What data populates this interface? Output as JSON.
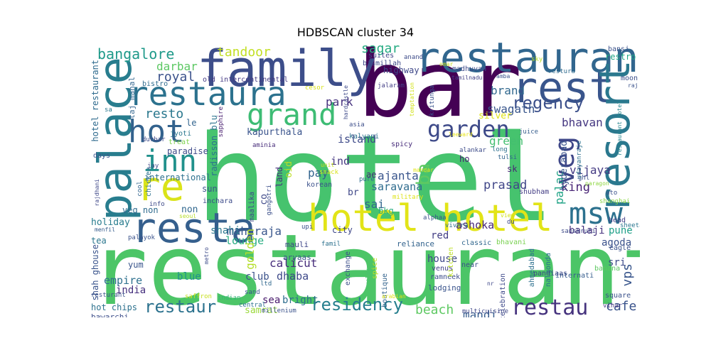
{
  "title": "HDBSCAN cluster 34",
  "words": [
    {
      "text": "hotel",
      "color": "#46c36e"
    },
    {
      "text": "restaurant",
      "color": "#4cc567"
    },
    {
      "text": "bar",
      "color": "#440154"
    },
    {
      "text": "family",
      "color": "#3d4e8a"
    },
    {
      "text": "restauran",
      "color": "#31668e"
    },
    {
      "text": "rest",
      "color": "#39558c"
    },
    {
      "text": "restaura",
      "color": "#2c728e"
    },
    {
      "text": "grand",
      "color": "#3dbc74"
    },
    {
      "text": "palace",
      "color": "#287d8e"
    },
    {
      "text": "resort",
      "color": "#2a788e"
    },
    {
      "text": "hot",
      "color": "#33628d"
    },
    {
      "text": "inn",
      "color": "#21918c"
    },
    {
      "text": "re",
      "color": "#dae319"
    },
    {
      "text": "hotel hotel",
      "color": "#e2e418"
    },
    {
      "text": "resta",
      "color": "#355f8d"
    },
    {
      "text": "msw",
      "color": "#2c718e"
    },
    {
      "text": "veg",
      "color": "#3f4788"
    },
    {
      "text": "garden",
      "color": "#3e4a89"
    },
    {
      "text": "regency",
      "color": "#3c508b"
    },
    {
      "text": "residency",
      "color": "#277f8e"
    },
    {
      "text": "restau",
      "color": "#46337e"
    },
    {
      "text": "restaur",
      "color": "#2c728e"
    },
    {
      "text": "bangalore",
      "color": "#1f9a8a"
    },
    {
      "text": "tandoor",
      "color": "#c2df23"
    },
    {
      "text": "sagar",
      "color": "#25ab82"
    },
    {
      "text": "darbar",
      "color": "#5cc863"
    },
    {
      "text": "royal",
      "color": "#3b528b"
    },
    {
      "text": "resto",
      "color": "#2a788e"
    },
    {
      "text": "park",
      "color": "#46327e"
    },
    {
      "text": "brand",
      "color": "#31688e"
    },
    {
      "text": "swagath",
      "color": "#39568c"
    },
    {
      "text": "bhavan",
      "color": "#453781"
    },
    {
      "text": "king",
      "color": "#482475"
    },
    {
      "text": "ind",
      "color": "#453781"
    },
    {
      "text": "ba",
      "color": "#5ec962"
    },
    {
      "text": "green",
      "color": "#44bf70"
    },
    {
      "text": "ajanta",
      "color": "#39558c"
    },
    {
      "text": "saravana",
      "color": "#2f6c8e"
    },
    {
      "text": "prasad",
      "color": "#404688"
    },
    {
      "text": "vijaya",
      "color": "#443a83"
    },
    {
      "text": "palac",
      "color": "#20a386"
    },
    {
      "text": "pay",
      "color": "#32648e"
    },
    {
      "text": "sai",
      "color": "#31678e"
    },
    {
      "text": "maharaja",
      "color": "#39568c"
    },
    {
      "text": "shahi",
      "color": "#2a768e"
    },
    {
      "text": "lounge",
      "color": "#27ad81"
    },
    {
      "text": "balaji",
      "color": "#46337e"
    },
    {
      "text": "pune",
      "color": "#1fa088"
    },
    {
      "text": "agoda",
      "color": "#3b528b"
    },
    {
      "text": "ashoka",
      "color": "#482878"
    },
    {
      "text": "beach",
      "color": "#5ec962"
    },
    {
      "text": "mandi",
      "color": "#365c8d"
    },
    {
      "text": "cafe",
      "color": "#3a538b"
    },
    {
      "text": "calicut",
      "color": "#472d7b"
    },
    {
      "text": "dhaba",
      "color": "#3e4989"
    },
    {
      "text": "blue",
      "color": "#20928c"
    },
    {
      "text": "club",
      "color": "#3b528b"
    },
    {
      "text": "golden",
      "color": "#b5de2b"
    },
    {
      "text": "vps",
      "color": "#39568c"
    },
    {
      "text": "sri",
      "color": "#3e4c8a"
    },
    {
      "text": "india",
      "color": "#46307e"
    },
    {
      "text": "empire",
      "color": "#2d708e"
    },
    {
      "text": "yum",
      "color": "#39558c"
    },
    {
      "text": "holiday",
      "color": "#287c8e"
    },
    {
      "text": "international",
      "color": "#2d718e"
    },
    {
      "text": "paradise",
      "color": "#3e4a89"
    },
    {
      "text": "kapurthala",
      "color": "#3a548c"
    },
    {
      "text": "island",
      "color": "#3e4a89"
    },
    {
      "text": "radisson blu",
      "color": "#2c738e"
    },
    {
      "text": "city",
      "color": "#3f4889"
    },
    {
      "text": "red",
      "color": "#433e85"
    },
    {
      "text": "house",
      "color": "#3f4788"
    },
    {
      "text": "bright",
      "color": "#2e6e8e"
    },
    {
      "text": "sea",
      "color": "#481a6c"
    },
    {
      "text": "samrat",
      "color": "#9bd93c"
    },
    {
      "text": "hotel restaurant",
      "color": "#2f6b8e"
    },
    {
      "text": "shah ghouse",
      "color": "#3a548c"
    },
    {
      "text": "hot chips",
      "color": "#2d718e"
    },
    {
      "text": "bawarchi",
      "color": "#3d4e8a"
    },
    {
      "text": "restro",
      "color": "#22a785"
    },
    {
      "text": "bansi",
      "color": "#3b528b"
    },
    {
      "text": "moon",
      "color": "#3c4f8a"
    },
    {
      "text": "suites",
      "color": "#3f4788"
    },
    {
      "text": "bismillah",
      "color": "#3e4a89"
    },
    {
      "text": "highway",
      "color": "#3f4889"
    },
    {
      "text": "madhuvan",
      "color": "#3e4c8a"
    },
    {
      "text": "taj mahal",
      "color": "#32658e"
    },
    {
      "text": "bistro",
      "color": "#2f6b8e"
    },
    {
      "text": "old intercontinental",
      "color": "#443983"
    },
    {
      "text": "le",
      "color": "#32648e"
    },
    {
      "text": "jyoti",
      "color": "#2a788e"
    },
    {
      "text": "treat",
      "color": "#7fd34e"
    },
    {
      "text": "sapphire",
      "color": "#481d6f"
    },
    {
      "text": "hyderabad",
      "color": "#3a548c"
    },
    {
      "text": "sk",
      "color": "#482475"
    },
    {
      "text": "ho",
      "color": "#482173"
    },
    {
      "text": "shubham",
      "color": "#433d84"
    },
    {
      "text": "sun",
      "color": "#3b528b"
    },
    {
      "text": "non",
      "color": "#31678e"
    },
    {
      "text": "veg non",
      "color": "#2f6b8e"
    },
    {
      "text": "korean",
      "color": "#3b518b"
    },
    {
      "text": "br",
      "color": "#3f4788"
    },
    {
      "text": "ae",
      "color": "#472a7a"
    },
    {
      "text": "bkg",
      "color": "#27ad81"
    },
    {
      "text": "mauli",
      "color": "#3f4788"
    },
    {
      "text": "aryaas",
      "color": "#39568c"
    },
    {
      "text": "reliance",
      "color": "#33638d"
    },
    {
      "text": "classic",
      "color": "#31678e"
    },
    {
      "text": "bhavani",
      "color": "#7ad151"
    },
    {
      "text": "eagle",
      "color": "#3b528b"
    },
    {
      "text": "ahmedabad",
      "color": "#2d708e"
    },
    {
      "text": "nalgonda",
      "color": "#2c738e"
    },
    {
      "text": "banana",
      "color": "#5ec962"
    },
    {
      "text": "square",
      "color": "#3b528b"
    },
    {
      "text": "vihar",
      "color": "#453882"
    },
    {
      "text": "multicuisine",
      "color": "#3f4788"
    },
    {
      "text": "millenium",
      "color": "#3b528b"
    },
    {
      "text": "central",
      "color": "#2c728e"
    },
    {
      "text": "saffron",
      "color": "#c8e020"
    },
    {
      "text": "indian",
      "color": "#35b779"
    },
    {
      "text": "sand",
      "color": "#39568c"
    },
    {
      "text": "ltd",
      "color": "#31688e"
    },
    {
      "text": "ramneek",
      "color": "#3d4d8a"
    },
    {
      "text": "lodging",
      "color": "#3a548c"
    },
    {
      "text": "internati",
      "color": "#365d8d"
    },
    {
      "text": "celebration",
      "color": "#3e4989"
    },
    {
      "text": "pandiaas",
      "color": "#3e4a89"
    },
    {
      "text": "venus",
      "color": "#424086"
    },
    {
      "text": "boutique",
      "color": "#33638d"
    },
    {
      "text": "exchange",
      "color": "#3c4f8a"
    },
    {
      "text": "spice",
      "color": "#c0df25"
    },
    {
      "text": "relax",
      "color": "#4ac16d"
    },
    {
      "text": "kitchen",
      "color": "#bddf26"
    },
    {
      "text": "near",
      "color": "#3c4f8a"
    },
    {
      "text": "nr",
      "color": "#3f4889"
    },
    {
      "text": "sheetal",
      "color": "#2a768e"
    },
    {
      "text": "head",
      "color": "#424086"
    },
    {
      "text": "sanskruti",
      "color": "#3e4a89"
    },
    {
      "text": "view",
      "color": "#d0e11c"
    },
    {
      "text": "du",
      "color": "#3e4989"
    },
    {
      "text": "vivera",
      "color": "#2d708e"
    },
    {
      "text": "upi",
      "color": "#3b528b"
    },
    {
      "text": "alphaa",
      "color": "#3b528b"
    },
    {
      "text": "military",
      "color": "#dde318"
    },
    {
      "text": "pure",
      "color": "#2f6c8e"
    },
    {
      "text": "mandar",
      "color": "#e5e419"
    },
    {
      "text": "unit",
      "color": "#c5e021"
    },
    {
      "text": "snack",
      "color": "#d8e219"
    },
    {
      "text": "alankar",
      "color": "#3e4c8a"
    },
    {
      "text": "long",
      "color": "#2d708e"
    },
    {
      "text": "ghl",
      "color": "#3b528b"
    },
    {
      "text": "ato",
      "color": "#3b528b"
    },
    {
      "text": "shanghai",
      "color": "#8bd646"
    },
    {
      "text": "paragon",
      "color": "#90d743"
    },
    {
      "text": "udayanraje",
      "color": "#2c718e"
    },
    {
      "text": "restaurant hotel",
      "color": "#25848e"
    },
    {
      "text": "juice",
      "color": "#365d8d"
    },
    {
      "text": "leeward",
      "color": "#e7e419"
    },
    {
      "text": "tulsi",
      "color": "#32658e"
    },
    {
      "text": "kalyani",
      "color": "#2c718e"
    },
    {
      "text": "spicy",
      "color": "#472c7a"
    },
    {
      "text": "asia",
      "color": "#3d4e8a"
    },
    {
      "text": "aminia",
      "color": "#472c7a"
    },
    {
      "text": "maalika",
      "color": "#3e4989"
    },
    {
      "text": "gangotri",
      "color": "#3c4f8a"
    },
    {
      "text": "land",
      "color": "#472f7d"
    },
    {
      "text": "co",
      "color": "#3e4989"
    },
    {
      "text": "oid",
      "color": "#bddf26"
    },
    {
      "text": "cool",
      "color": "#32658e"
    },
    {
      "text": "chicken",
      "color": "#2d718e"
    },
    {
      "text": "jay",
      "color": "#3e4c8a"
    },
    {
      "text": "days",
      "color": "#3a548c"
    },
    {
      "text": "inchara",
      "color": "#3e4c8a"
    },
    {
      "text": "info",
      "color": "#3e4a89"
    },
    {
      "text": "seoul",
      "color": "#b8de29"
    },
    {
      "text": "menfil",
      "color": "#365c8d"
    },
    {
      "text": "tea",
      "color": "#2a768e"
    },
    {
      "text": "rajdhani",
      "color": "#3f4889"
    },
    {
      "text": "palayok",
      "color": "#3b528b"
    },
    {
      "text": "resturant",
      "color": "#3b528b"
    },
    {
      "text": "metro",
      "color": "#3e4c8a"
    },
    {
      "text": "famil",
      "color": "#2c718e"
    },
    {
      "text": "arabian",
      "color": "#dce319"
    },
    {
      "text": "durbar",
      "color": "#3e4a89"
    },
    {
      "text": "sa",
      "color": "#2a788e"
    },
    {
      "text": "cesor",
      "color": "#d8e219"
    },
    {
      "text": "hardcastle",
      "color": "#3e4a89"
    },
    {
      "text": "temptation",
      "color": "#d2e21b"
    },
    {
      "text": "kritunga",
      "color": "#3a548c"
    },
    {
      "text": "jalaram",
      "color": "#433e85"
    },
    {
      "text": "tamilnadu",
      "color": "#424186"
    },
    {
      "text": "amba",
      "color": "#3b528b"
    },
    {
      "text": "anand",
      "color": "#3e4c8a"
    },
    {
      "text": "omar",
      "color": "#c8e020"
    },
    {
      "text": "restura",
      "color": "#2f6b8e"
    },
    {
      "text": "sky",
      "color": "#bade28"
    },
    {
      "text": "raj",
      "color": "#3b528b"
    },
    {
      "text": "silver",
      "color": "#dfe318"
    }
  ]
}
